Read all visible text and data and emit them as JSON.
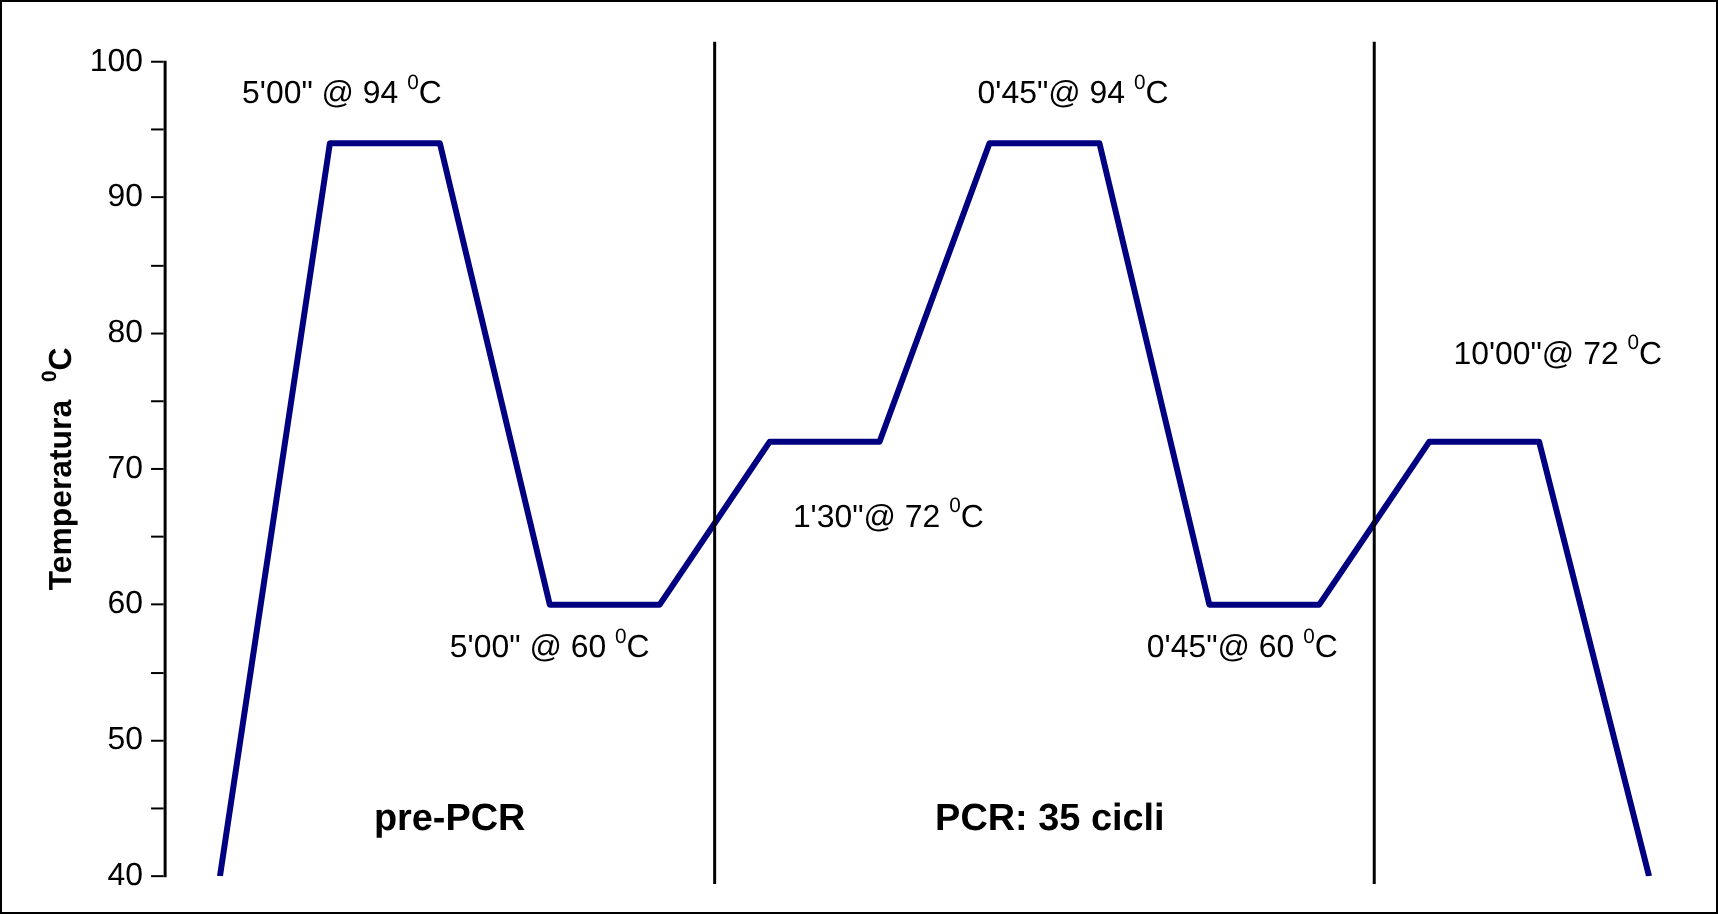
{
  "chart_data": {
    "type": "line",
    "ylabel": "Temperatura  $^{0}$C",
    "categories": [
      null,
      null,
      null,
      null,
      null,
      null,
      null,
      null,
      null,
      null,
      null,
      null,
      null,
      null
    ],
    "series": [
      {
        "color": "#000080",
        "values": [
          40,
          94,
          94,
          60,
          60,
          72,
          72,
          94,
          94,
          60,
          60,
          72,
          72,
          40
        ]
      }
    ],
    "ylim": [
      40,
      100
    ],
    "yticks": [
      40,
      {
        "value": 45,
        "label": null
      },
      50,
      {
        "value": 55,
        "label": null
      },
      60,
      {
        "value": 65,
        "label": null
      },
      70,
      {
        "value": 75,
        "label": null
      },
      80,
      {
        "value": 85,
        "label": null
      },
      90,
      {
        "value": 95,
        "label": null
      },
      100
    ],
    "tick_labels": "y",
    "grid": false,
    "legend": false,
    "marker": "none",
    "line_style": "solid",
    "annotations": [
      "5'00\" @ 94 $^{0}$C",
      "5'00\" @ 60 $^{0}$C",
      "1'30\"@ 72 $^{0}$C",
      "0'45\"@ 94 $^{0}$C",
      "0'45\"@ 60 $^{0}$C",
      "10'00\"@ 72 $^{0}$C",
      "pre-PCR",
      "PCR: 35 cicli"
    ]
  }
}
